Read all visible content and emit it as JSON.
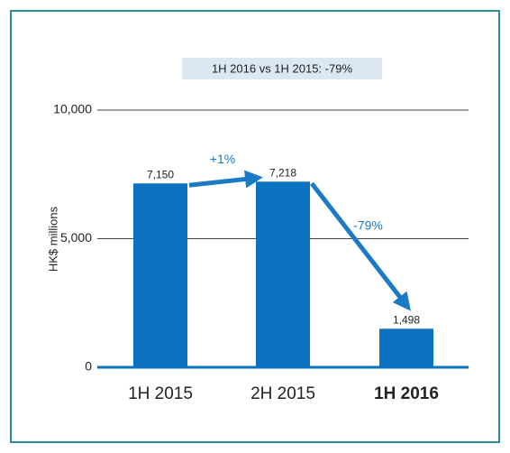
{
  "chart_data": {
    "type": "bar",
    "subtitle": "1H 2016 vs 1H 2015: -79%",
    "y_label": "HK$ millions",
    "categories": [
      "1H 2015",
      "2H 2015",
      "1H 2016"
    ],
    "values": [
      7150,
      7218,
      1498
    ],
    "value_labels": [
      "7,150",
      "7,218",
      "1,498"
    ],
    "color": "#0a72c0",
    "ylim": [
      0,
      10000
    ],
    "yticks": [
      0,
      {
        "value": 5000,
        "label": "5,000"
      },
      {
        "value": 10000,
        "label": "10,000"
      }
    ],
    "grid": true,
    "annotations": [
      {
        "text": "+1%"
      },
      {
        "text": "-79%"
      }
    ]
  }
}
